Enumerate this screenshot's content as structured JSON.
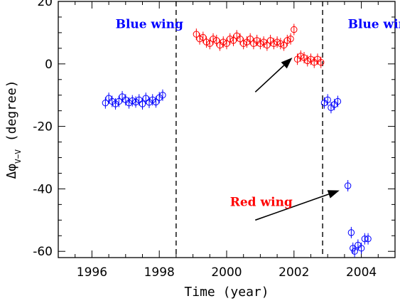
{
  "chart_data": {
    "type": "scatter",
    "xlabel": "Time (year)",
    "ylabel_prefix": "Δφ",
    "ylabel_sub": "V−V",
    "ylabel_suffix": " (degree)",
    "xlim": [
      1995,
      2005
    ],
    "ylim": [
      -62,
      20
    ],
    "xticks": [
      1996,
      1998,
      2000,
      2002,
      2004
    ],
    "yticks": [
      -60,
      -40,
      -20,
      0,
      20
    ],
    "grid": false,
    "series": [
      {
        "color": "#0000ff",
        "x": [
          1996.4,
          1996.5,
          1996.6,
          1996.7,
          1996.8,
          1996.9,
          1997.0,
          1997.1,
          1997.2,
          1997.3,
          1997.4,
          1997.5,
          1997.6,
          1997.7,
          1997.8,
          1997.9,
          1998.0,
          1998.1,
          2002.9,
          2003.0,
          2003.1,
          2003.2,
          2003.3,
          2003.6,
          2003.7,
          2003.75,
          2003.8,
          2003.9,
          2004.0,
          2004.1,
          2004.2
        ],
        "y": [
          -12.5,
          -11,
          -12,
          -12.8,
          -12,
          -10.5,
          -11.5,
          -12.5,
          -11.8,
          -12.2,
          -11.5,
          -12.8,
          -11,
          -12.3,
          -11.5,
          -12.2,
          -10.8,
          -10,
          -12.5,
          -11.5,
          -14,
          -13,
          -12,
          -39,
          -54,
          -59,
          -60,
          -58,
          -59,
          -56,
          -56
        ]
      },
      {
        "color": "#ff0000",
        "x": [
          1999.1,
          1999.2,
          1999.3,
          1999.4,
          1999.5,
          1999.6,
          1999.7,
          1999.8,
          1999.9,
          2000.0,
          2000.1,
          2000.2,
          2000.3,
          2000.4,
          2000.5,
          2000.6,
          2000.7,
          2000.8,
          2000.9,
          2001.0,
          2001.1,
          2001.2,
          2001.3,
          2001.4,
          2001.5,
          2001.6,
          2001.7,
          2001.8,
          2001.9,
          2002.0,
          2002.1,
          2002.2,
          2002.3,
          2002.4,
          2002.5,
          2002.6,
          2002.7,
          2002.8
        ],
        "y": [
          9.5,
          8,
          8.5,
          7,
          6.5,
          8,
          7.5,
          6,
          7,
          6.5,
          8,
          7.5,
          9,
          8,
          6.5,
          7,
          8,
          6.5,
          7.5,
          6.5,
          7,
          6,
          7.5,
          6.5,
          7,
          6.5,
          6,
          7.5,
          8,
          11,
          1.5,
          2.5,
          2,
          1,
          1.5,
          0.5,
          1.5,
          0.5
        ]
      }
    ],
    "vlines": [
      1998.5,
      2002.85
    ],
    "annotations": [
      {
        "text": "Blue wing",
        "color": "#0000ff",
        "x": 1996.7,
        "y": 11.5
      },
      {
        "text": "Red wing",
        "color": "#ff0000",
        "x": 2000.1,
        "y": -45.5
      },
      {
        "text": "Blue wing",
        "color": "#0000ff",
        "x": 2003.6,
        "y": 11.5
      }
    ],
    "arrows": [
      {
        "from": [
          2000.85,
          -9
        ],
        "to": [
          2001.95,
          2
        ]
      },
      {
        "from": [
          2000.85,
          -50
        ],
        "to": [
          2003.35,
          -40.5
        ]
      }
    ]
  }
}
